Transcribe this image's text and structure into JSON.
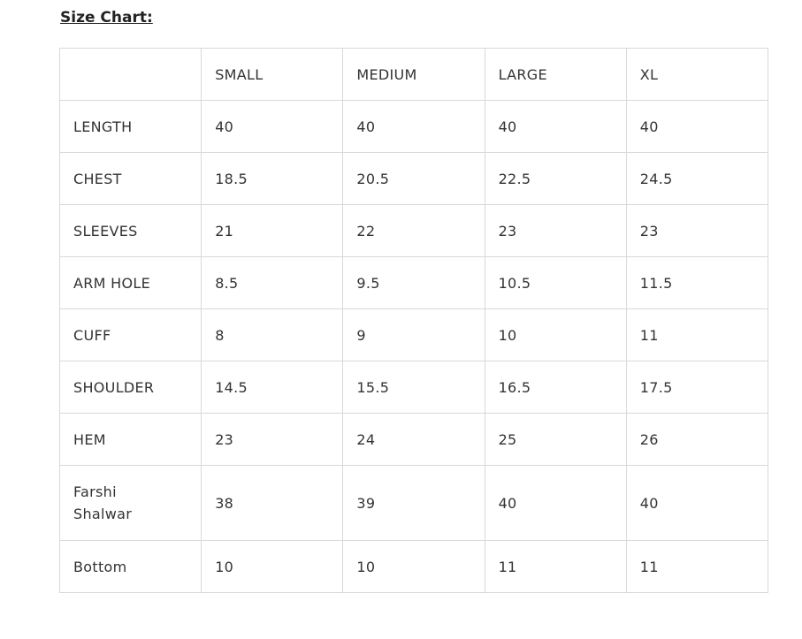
{
  "title": "Size Chart:",
  "table": {
    "header": [
      "",
      "SMALL",
      "MEDIUM",
      "LARGE",
      "XL"
    ],
    "rows": [
      [
        "LENGTH",
        "40",
        "40",
        "40",
        "40"
      ],
      [
        "CHEST",
        "18.5",
        "20.5",
        "22.5",
        "24.5"
      ],
      [
        "SLEEVES",
        "21",
        "22",
        "23",
        "23"
      ],
      [
        "ARM HOLE",
        "8.5",
        "9.5",
        "10.5",
        "11.5"
      ],
      [
        "CUFF",
        "8",
        "9",
        "10",
        "11"
      ],
      [
        "SHOULDER",
        "14.5",
        "15.5",
        "16.5",
        "17.5"
      ],
      [
        "HEM",
        "23",
        "24",
        "25",
        "26"
      ],
      [
        "Farshi Shalwar",
        "38",
        "39",
        "40",
        "40"
      ],
      [
        "Bottom",
        "10",
        "10",
        "11",
        "11"
      ]
    ]
  }
}
